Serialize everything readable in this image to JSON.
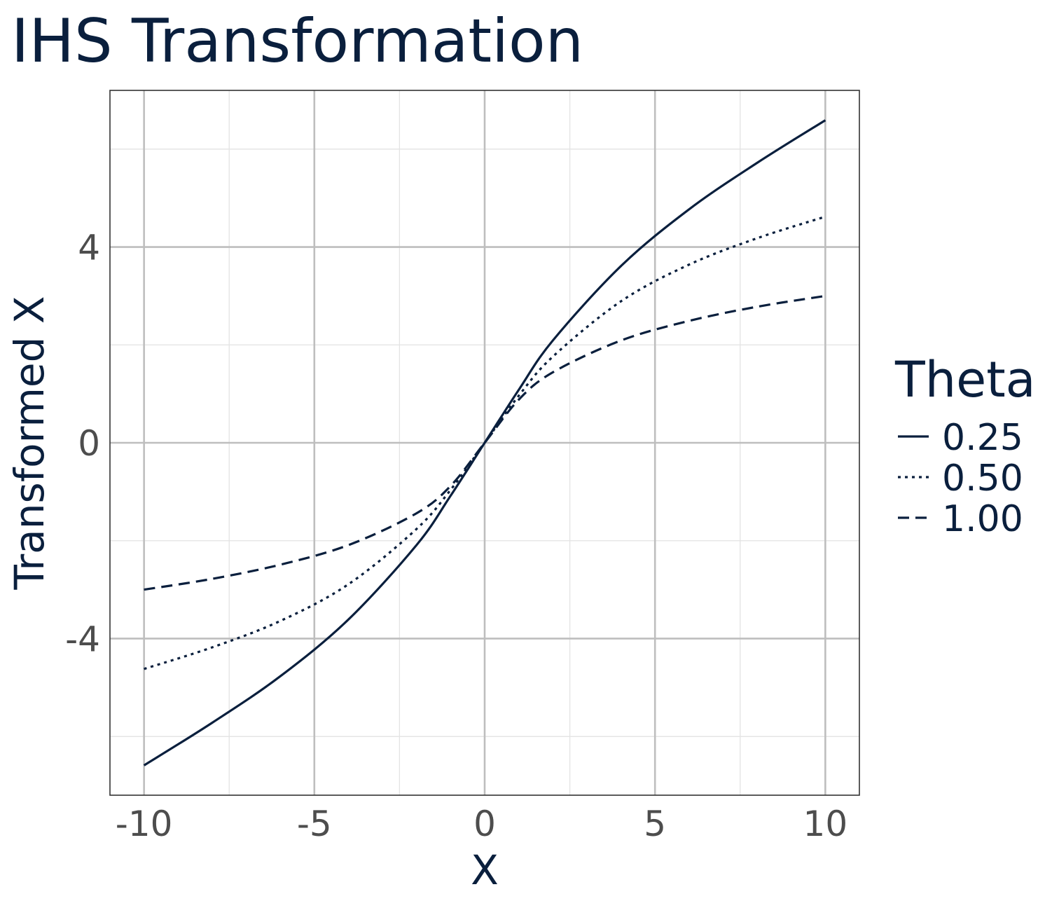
{
  "chart_data": {
    "type": "line",
    "title": "IHS Transformation",
    "xlabel": "X",
    "ylabel": "Transformed X",
    "xlim": [
      -11,
      11
    ],
    "ylim": [
      -7.2,
      7.2
    ],
    "x_ticks": [
      -10,
      -5,
      0,
      5,
      10
    ],
    "x_tick_labels": [
      "-10",
      "-5",
      "0",
      "5",
      "10"
    ],
    "y_ticks": [
      -4,
      0,
      4
    ],
    "y_tick_labels": [
      "-4",
      "0",
      "4"
    ],
    "grid": true,
    "legend": {
      "title": "Theta",
      "placement": "right"
    },
    "x": [
      -10,
      -8,
      -6,
      -4,
      -2,
      -1,
      0,
      1,
      2,
      4,
      6,
      8,
      10
    ],
    "series": [
      {
        "name": "0.25",
        "dash": "solid",
        "values": [
          -6.59,
          -5.72,
          -4.77,
          -3.61,
          -2.09,
          -1.08,
          0,
          1.08,
          2.09,
          3.61,
          4.77,
          5.72,
          6.59
        ]
      },
      {
        "name": "0.50",
        "dash": "dotted",
        "values": [
          -4.62,
          -4.18,
          -3.64,
          -2.89,
          -1.76,
          -0.96,
          0,
          0.96,
          1.76,
          2.89,
          3.64,
          4.18,
          4.62
        ]
      },
      {
        "name": "1.00",
        "dash": "dashed",
        "values": [
          -3.0,
          -2.78,
          -2.49,
          -2.09,
          -1.44,
          -0.88,
          0,
          0.88,
          1.44,
          2.09,
          2.49,
          2.78,
          3.0
        ]
      }
    ],
    "colors": {
      "line": "#0a1f3d",
      "grid_major": "#bebebe",
      "grid_minor": "#e3e3e3",
      "panel_border": "#333333",
      "tick_text": "#4d4d4d"
    }
  }
}
